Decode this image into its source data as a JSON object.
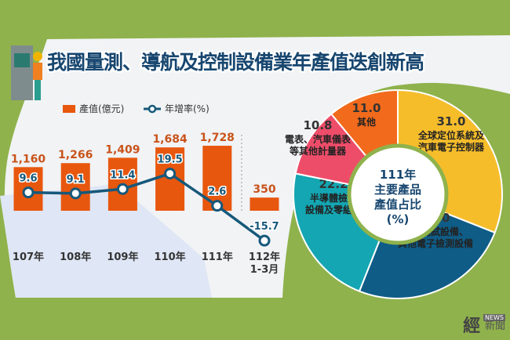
{
  "title": "我國量測、導航及控制設備業年產值迭創新高",
  "colors": {
    "bar": "#e8570e",
    "line": "#16587a",
    "bg": "#8fb24c",
    "title": "#17466f"
  },
  "chart_data": [
    {
      "type": "bar+line",
      "categories": [
        "107年",
        "108年",
        "109年",
        "110年",
        "111年",
        "112年 1-3月"
      ],
      "category_lines": [
        [
          "107年"
        ],
        [
          "108年"
        ],
        [
          "109年"
        ],
        [
          "110年"
        ],
        [
          "111年"
        ],
        [
          "112年",
          "1-3月"
        ]
      ],
      "series": [
        {
          "name": "產值(億元)",
          "type": "bar",
          "values": [
            1160,
            1266,
            1409,
            1684,
            1728,
            350
          ],
          "labels": [
            "1,160",
            "1,266",
            "1,409",
            "1,684",
            "1,728",
            "350"
          ]
        },
        {
          "name": "年增率(%)",
          "type": "line",
          "values": [
            9.6,
            9.1,
            11.4,
            19.5,
            2.6,
            -15.7
          ],
          "labels": [
            "9.6",
            "9.1",
            "11.4",
            "19.5",
            "2.6",
            "-15.7"
          ]
        }
      ],
      "legend": "top-left"
    },
    {
      "type": "donut",
      "center_label": [
        "111年",
        "主要產品",
        "產值占比",
        "(%)"
      ],
      "slices": [
        {
          "value": 31.0,
          "label": "31.0",
          "name": [
            "全球定位系統及",
            "汽車電子控制器"
          ],
          "color": "#f6bd2b"
        },
        {
          "value": 25.0,
          "label": "25.0",
          "name": [
            "自動測試設備、",
            "其他電子檢測設備"
          ],
          "color": "#0f5c86"
        },
        {
          "value": 22.2,
          "label": "22.2",
          "name": [
            "半導體檢測",
            "設備及零組件"
          ],
          "color": "#14a6b2"
        },
        {
          "value": 10.8,
          "label": "10.8",
          "name": [
            "電表、汽車儀表",
            "等其他計量器"
          ],
          "color": "#ee4d6a"
        },
        {
          "value": 11.0,
          "label": "11.0",
          "name": [
            "其他"
          ],
          "color": "#f26a1b"
        }
      ]
    }
  ],
  "watermark": {
    "logo": "經",
    "news": "NEWS",
    "text": "新聞"
  }
}
